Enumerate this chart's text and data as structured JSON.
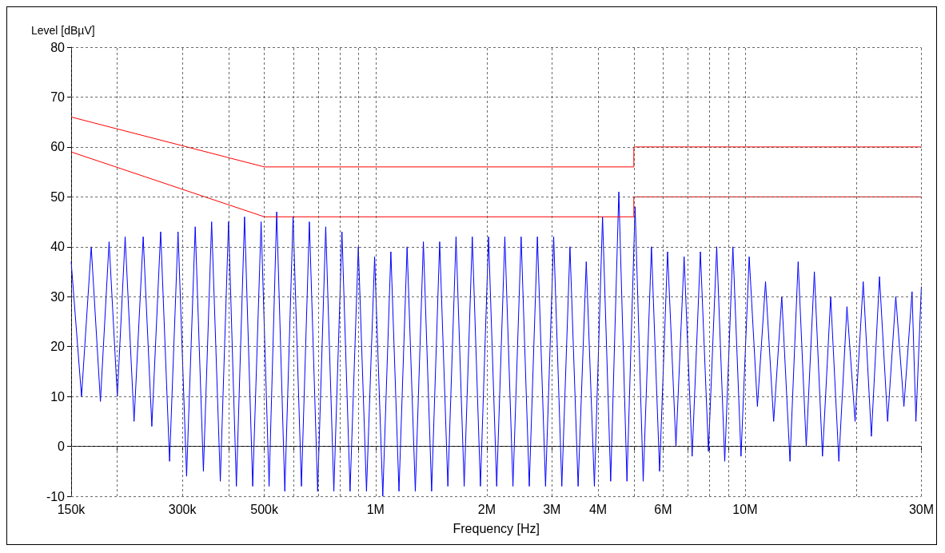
{
  "chart_data": {
    "type": "line",
    "xlabel": "Frequency [Hz]",
    "ylabel": "Level [dBµV]",
    "log": "x",
    "xlim": [
      150000,
      30000000
    ],
    "xticks": [
      {
        "value": 150000,
        "label": "150k"
      },
      {
        "value": 200000,
        "label": null
      },
      {
        "value": 300000,
        "label": "300k"
      },
      {
        "value": 400000,
        "label": null
      },
      {
        "value": 500000,
        "label": "500k"
      },
      {
        "value": 600000,
        "label": null
      },
      {
        "value": 700000,
        "label": null
      },
      {
        "value": 800000,
        "label": null
      },
      {
        "value": 900000,
        "label": null
      },
      {
        "value": 1000000,
        "label": "1M"
      },
      {
        "value": 2000000,
        "label": "2M"
      },
      {
        "value": 3000000,
        "label": "3M"
      },
      {
        "value": 4000000,
        "label": "4M"
      },
      {
        "value": 5000000,
        "label": null
      },
      {
        "value": 6000000,
        "label": "6M"
      },
      {
        "value": 7000000,
        "label": null
      },
      {
        "value": 8000000,
        "label": null
      },
      {
        "value": 9000000,
        "label": null
      },
      {
        "value": 10000000,
        "label": "10M"
      },
      {
        "value": 20000000,
        "label": null
      },
      {
        "value": 30000000,
        "label": "30M"
      }
    ],
    "ylim": [
      -10,
      80
    ],
    "yticks": [
      -10,
      0,
      10,
      20,
      30,
      40,
      50,
      60,
      70,
      80
    ],
    "grid": true,
    "marker": "none",
    "line_style": "solid",
    "series": [
      {
        "color": "#0000ff",
        "x": [
          150000,
          160000,
          170000,
          180000,
          190000,
          200000,
          210000,
          222000,
          235000,
          248000,
          262000,
          277000,
          292000,
          308000,
          325000,
          342000,
          360000,
          380000,
          400000,
          420000,
          442000,
          465000,
          490000,
          515000,
          540000,
          568000,
          598000,
          630000,
          662000,
          697000,
          733000,
          771000,
          811000,
          853000,
          898000,
          945000,
          994000,
          1046000,
          1100000,
          1157000,
          1217000,
          1281000,
          1347000,
          1418000,
          1491000,
          1569000,
          1651000,
          1737000,
          1827000,
          1922000,
          2022000,
          2127000,
          2238000,
          2354000,
          2477000,
          2606000,
          2741000,
          2884000,
          3034000,
          3192000,
          3358000,
          3533000,
          3717000,
          3910000,
          4114000,
          4328000,
          4553000,
          4790000,
          5039000,
          5300000,
          5580000,
          5870000,
          6170000,
          6500000,
          6840000,
          7190000,
          7570000,
          7960000,
          8380000,
          8810000,
          9270000,
          9750000,
          10260000,
          10800000,
          11360000,
          11950000,
          12570000,
          13230000,
          13920000,
          14640000,
          15400000,
          16200000,
          17050000,
          17940000,
          18870000,
          19850000,
          20880000,
          21970000,
          23110000,
          24310000,
          25580000,
          26910000,
          28310000,
          29000000,
          30000000
        ],
        "values": [
          37,
          10,
          40,
          9,
          41,
          10,
          42,
          5,
          42,
          4,
          43,
          -3,
          43,
          -6,
          44,
          -5,
          45,
          -7,
          45,
          -8,
          46,
          -8,
          45,
          -8,
          47,
          -9,
          46,
          -8,
          45,
          -9,
          44,
          -9,
          43,
          -9,
          40,
          -9,
          38,
          -10,
          39,
          -9,
          40,
          -9,
          41,
          -9,
          41,
          -8,
          42,
          -8,
          42,
          -8,
          42,
          -8,
          42,
          -8,
          42,
          -8,
          42,
          -8,
          42,
          -8,
          40,
          -8,
          37,
          -8,
          46,
          -7,
          51,
          -7,
          48,
          -7,
          40,
          -5,
          39,
          0,
          38,
          -2,
          39,
          -1,
          40,
          -3,
          40,
          -2,
          38,
          8,
          33,
          5,
          30,
          -3,
          37,
          0,
          35,
          -2,
          30,
          -3,
          28,
          5,
          33,
          2,
          34,
          5,
          30,
          8,
          31,
          5,
          32
        ]
      },
      {
        "color": "#ff0000",
        "x": [
          150000,
          500000,
          5000000,
          5000000,
          30000000
        ],
        "values": [
          66,
          56,
          56,
          60,
          60
        ]
      },
      {
        "color": "#ff0000",
        "x": [
          150000,
          500000,
          5000000,
          5000000,
          30000000
        ],
        "values": [
          59,
          46,
          46,
          50,
          50
        ]
      }
    ]
  }
}
